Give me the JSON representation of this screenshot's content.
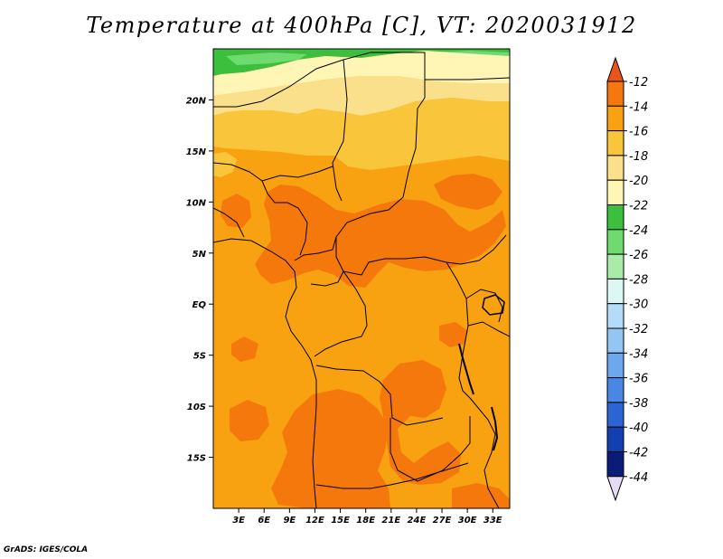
{
  "title": "Temperature at 400hPa [C], VT: 2020031912",
  "credit": "GrADS: IGES/COLA",
  "map": {
    "lon_range": [
      0,
      35
    ],
    "lat_range": [
      -20,
      25
    ],
    "lon_ticks": [
      {
        "value": 3,
        "label": "3E"
      },
      {
        "value": 6,
        "label": "6E"
      },
      {
        "value": 9,
        "label": "9E"
      },
      {
        "value": 12,
        "label": "12E"
      },
      {
        "value": 15,
        "label": "15E"
      },
      {
        "value": 18,
        "label": "18E"
      },
      {
        "value": 21,
        "label": "21E"
      },
      {
        "value": 24,
        "label": "24E"
      },
      {
        "value": 27,
        "label": "27E"
      },
      {
        "value": 30,
        "label": "30E"
      },
      {
        "value": 33,
        "label": "33E"
      }
    ],
    "lat_ticks": [
      {
        "value": 20,
        "label": "20N"
      },
      {
        "value": 15,
        "label": "15N"
      },
      {
        "value": 10,
        "label": "10N"
      },
      {
        "value": 5,
        "label": "5N"
      },
      {
        "value": 0,
        "label": "EQ"
      },
      {
        "value": -5,
        "label": "5S"
      },
      {
        "value": -10,
        "label": "10S"
      },
      {
        "value": -15,
        "label": "15S"
      }
    ]
  },
  "colorbar": {
    "labels": [
      "-12",
      "-14",
      "-16",
      "-18",
      "-20",
      "-22",
      "-24",
      "-26",
      "-28",
      "-30",
      "-32",
      "-34",
      "-36",
      "-38",
      "-40",
      "-42",
      "-44"
    ],
    "colors": [
      "#e8541a",
      "#f5780c",
      "#f8a211",
      "#f9c53a",
      "#fae08a",
      "#fff5b4",
      "#3cbf3c",
      "#6fda6f",
      "#a8eca8",
      "#dcf7f4",
      "#b4dcf8",
      "#93c6f3",
      "#6ea8ec",
      "#4a87e4",
      "#2b65d4",
      "#1240b0",
      "#0a1c78",
      "#e4dcf4"
    ]
  }
}
